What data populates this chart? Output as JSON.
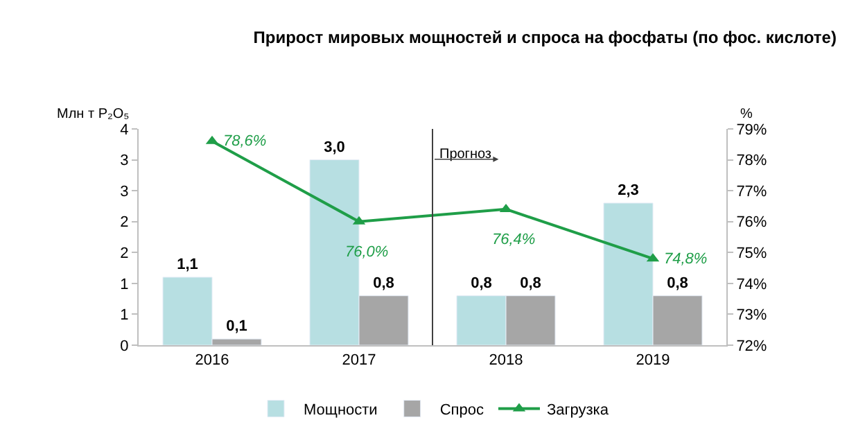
{
  "chart_data": {
    "type": "bar",
    "title": "Прирост мировых мощностей и спроса на фосфаты (по фос. кислоте)",
    "ylabel": "Млн т P₂O₅",
    "y2label": "%",
    "categories": [
      "2016",
      "2017",
      "2018",
      "2019"
    ],
    "series": [
      {
        "name": "Мощности",
        "color": "#b7dfe2",
        "values": [
          1.1,
          3.0,
          0.8,
          2.3
        ],
        "value_labels": [
          "1,1",
          "3,0",
          "0,8",
          "2,3"
        ]
      },
      {
        "name": "Спрос",
        "color": "#a6a6a6",
        "values": [
          0.1,
          0.8,
          0.8,
          0.8
        ],
        "value_labels": [
          "0,1",
          "0,8",
          "0,8",
          "0,8"
        ]
      },
      {
        "name": "Загрузка",
        "type": "line",
        "axis": "y2",
        "color": "#1f9e48",
        "marker": "triangle",
        "values": [
          78.6,
          76.0,
          76.4,
          74.8
        ],
        "value_labels": [
          "78,6%",
          "76,0%",
          "76,4%",
          "74,8%"
        ]
      }
    ],
    "ylim": [
      0,
      3.5
    ],
    "yticks": [
      0,
      {
        "value": 0.5,
        "label": "1"
      },
      1,
      {
        "value": 1.5,
        "label": "2"
      },
      2,
      {
        "value": 2.5,
        "label": "3"
      },
      3,
      {
        "value": 3.5,
        "label": "4"
      }
    ],
    "y2lim": [
      72,
      79
    ],
    "y2ticks": [
      {
        "value": 72,
        "label": "72%"
      },
      {
        "value": 73,
        "label": "73%"
      },
      {
        "value": 74,
        "label": "74%"
      },
      {
        "value": 75,
        "label": "75%"
      },
      {
        "value": 76,
        "label": "76%"
      },
      {
        "value": 77,
        "label": "77%"
      },
      {
        "value": 78,
        "label": "78%"
      },
      {
        "value": 79,
        "label": "79%"
      }
    ],
    "annotations": [
      "Прогноз"
    ],
    "legend": "bottom"
  }
}
